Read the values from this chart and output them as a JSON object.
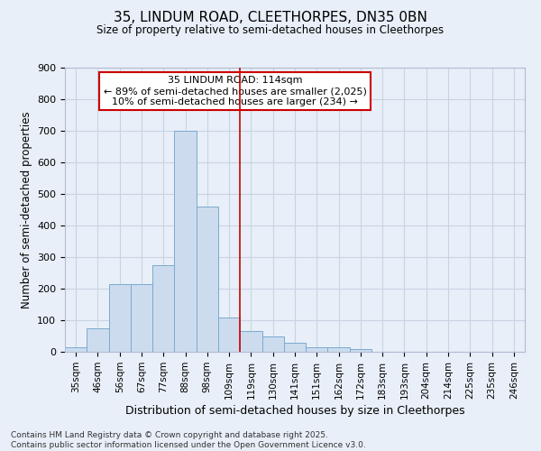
{
  "title": "35, LINDUM ROAD, CLEETHORPES, DN35 0BN",
  "subtitle": "Size of property relative to semi-detached houses in Cleethorpes",
  "xlabel": "Distribution of semi-detached houses by size in Cleethorpes",
  "ylabel": "Number of semi-detached properties",
  "categories": [
    "35sqm",
    "46sqm",
    "56sqm",
    "67sqm",
    "77sqm",
    "88sqm",
    "98sqm",
    "109sqm",
    "119sqm",
    "130sqm",
    "141sqm",
    "151sqm",
    "162sqm",
    "172sqm",
    "183sqm",
    "193sqm",
    "204sqm",
    "214sqm",
    "225sqm",
    "235sqm",
    "246sqm"
  ],
  "values": [
    15,
    75,
    215,
    215,
    275,
    700,
    460,
    110,
    65,
    50,
    30,
    15,
    15,
    10,
    0,
    0,
    0,
    0,
    0,
    0,
    0
  ],
  "bar_color": "#ccdcee",
  "bar_edge_color": "#7aaace",
  "grid_color": "#c8d4e4",
  "background_color": "#e8eff8",
  "plot_bg_color": "#e8eff8",
  "vline_x_index": 7.5,
  "vline_color": "#cc0000",
  "annotation_text": "35 LINDUM ROAD: 114sqm\n← 89% of semi-detached houses are smaller (2,025)\n10% of semi-detached houses are larger (234) →",
  "annotation_box_color": "#ffffff",
  "annotation_box_edge_color": "#cc0000",
  "ylim": [
    0,
    900
  ],
  "yticks": [
    0,
    100,
    200,
    300,
    400,
    500,
    600,
    700,
    800,
    900
  ],
  "footer_line1": "Contains HM Land Registry data © Crown copyright and database right 2025.",
  "footer_line2": "Contains public sector information licensed under the Open Government Licence v3.0."
}
